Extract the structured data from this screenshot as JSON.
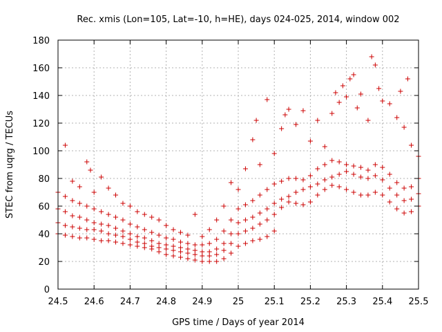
{
  "chart_data": {
    "type": "scatter",
    "title": "Rec. xmis (Lon=105, Lat=-10, h=HE), days 024-025, 2014, window 002",
    "xlabel": "GPS time / Days of year 2014",
    "ylabel": "STEC from uqrg / TECUs",
    "xlim": [
      24.5,
      25.5
    ],
    "ylim": [
      0,
      180
    ],
    "xticks": [
      "24.5",
      "24.6",
      "24.7",
      "24.8",
      "24.9",
      "25",
      "25.1",
      "25.2",
      "25.3",
      "25.4",
      "25.5"
    ],
    "yticks": [
      "0",
      "20",
      "40",
      "60",
      "80",
      "100",
      "120",
      "140",
      "160",
      "180"
    ],
    "grid": true,
    "marker": "+",
    "marker_color": "#cc0000",
    "series": [
      {
        "points": [
          [
            24.5,
            40
          ],
          [
            24.52,
            39
          ],
          [
            24.54,
            38
          ],
          [
            24.56,
            37
          ],
          [
            24.58,
            37
          ],
          [
            24.6,
            36
          ],
          [
            24.62,
            35
          ],
          [
            24.64,
            35
          ],
          [
            24.66,
            34
          ],
          [
            24.68,
            33
          ],
          [
            24.7,
            32
          ],
          [
            24.72,
            31
          ],
          [
            24.74,
            30
          ],
          [
            24.76,
            29
          ],
          [
            24.78,
            27
          ],
          [
            24.8,
            25
          ],
          [
            24.82,
            24
          ],
          [
            24.84,
            23
          ],
          [
            24.86,
            22
          ],
          [
            24.88,
            21
          ],
          [
            24.9,
            20
          ],
          [
            24.92,
            20
          ],
          [
            24.94,
            20
          ],
          [
            24.96,
            22
          ],
          [
            24.98,
            26
          ],
          [
            25.0,
            31
          ],
          [
            25.02,
            33
          ],
          [
            25.04,
            35
          ],
          [
            25.06,
            36
          ],
          [
            25.08,
            38
          ],
          [
            25.1,
            42
          ]
        ]
      },
      {
        "points": [
          [
            24.5,
            48
          ],
          [
            24.52,
            46
          ],
          [
            24.54,
            45
          ],
          [
            24.56,
            44
          ],
          [
            24.58,
            43
          ],
          [
            24.6,
            43
          ],
          [
            24.62,
            42
          ],
          [
            24.64,
            40
          ],
          [
            24.66,
            39
          ],
          [
            24.68,
            38
          ],
          [
            24.7,
            36
          ],
          [
            24.72,
            34
          ],
          [
            24.74,
            33
          ],
          [
            24.76,
            31
          ],
          [
            24.78,
            30
          ],
          [
            24.8,
            29
          ],
          [
            24.82,
            28
          ],
          [
            24.84,
            27
          ],
          [
            24.86,
            26
          ],
          [
            24.88,
            25
          ],
          [
            24.9,
            24
          ],
          [
            24.92,
            24
          ],
          [
            24.94,
            25
          ],
          [
            24.96,
            28
          ],
          [
            24.98,
            33
          ],
          [
            25.0,
            40
          ],
          [
            25.02,
            42
          ],
          [
            25.04,
            44
          ],
          [
            25.06,
            47
          ],
          [
            25.08,
            50
          ],
          [
            25.1,
            54
          ],
          [
            25.12,
            59
          ],
          [
            25.14,
            63
          ],
          [
            25.16,
            62
          ],
          [
            25.18,
            61
          ],
          [
            25.2,
            63
          ],
          [
            25.22,
            68
          ],
          [
            25.24,
            72
          ],
          [
            25.26,
            75
          ],
          [
            25.28,
            74
          ],
          [
            25.3,
            72
          ],
          [
            25.32,
            70
          ],
          [
            25.34,
            68
          ],
          [
            25.36,
            68
          ],
          [
            25.38,
            70
          ],
          [
            25.4,
            68
          ],
          [
            25.42,
            63
          ],
          [
            25.44,
            58
          ],
          [
            25.46,
            55
          ],
          [
            25.48,
            56
          ],
          [
            25.5,
            60
          ]
        ]
      },
      {
        "points": [
          [
            24.5,
            58
          ],
          [
            24.52,
            56
          ],
          [
            24.54,
            53
          ],
          [
            24.56,
            52
          ],
          [
            24.58,
            50
          ],
          [
            24.6,
            48
          ],
          [
            24.62,
            47
          ],
          [
            24.64,
            46
          ],
          [
            24.66,
            44
          ],
          [
            24.68,
            42
          ],
          [
            24.7,
            40
          ],
          [
            24.72,
            38
          ],
          [
            24.74,
            37
          ],
          [
            24.76,
            35
          ],
          [
            24.78,
            33
          ],
          [
            24.8,
            32
          ],
          [
            24.82,
            31
          ],
          [
            24.84,
            30
          ],
          [
            24.86,
            29
          ],
          [
            24.88,
            28
          ],
          [
            24.9,
            27
          ],
          [
            24.92,
            27
          ],
          [
            24.94,
            29
          ],
          [
            24.96,
            33
          ],
          [
            24.98,
            40
          ],
          [
            25.0,
            48
          ],
          [
            25.02,
            50
          ],
          [
            25.04,
            52
          ],
          [
            25.06,
            55
          ],
          [
            25.08,
            58
          ],
          [
            25.1,
            62
          ],
          [
            25.12,
            65
          ],
          [
            25.14,
            67
          ],
          [
            25.16,
            70
          ],
          [
            25.18,
            72
          ],
          [
            25.2,
            74
          ],
          [
            25.22,
            76
          ],
          [
            25.24,
            79
          ],
          [
            25.26,
            81
          ],
          [
            25.28,
            83
          ],
          [
            25.3,
            85
          ],
          [
            25.32,
            83
          ],
          [
            25.34,
            81
          ],
          [
            25.36,
            80
          ],
          [
            25.38,
            82
          ],
          [
            25.4,
            79
          ],
          [
            25.42,
            73
          ],
          [
            25.44,
            68
          ],
          [
            25.46,
            64
          ],
          [
            25.48,
            65
          ],
          [
            25.5,
            69
          ]
        ]
      },
      {
        "points": [
          [
            24.5,
            70
          ],
          [
            24.52,
            67
          ],
          [
            24.54,
            64
          ],
          [
            24.56,
            62
          ],
          [
            24.58,
            60
          ],
          [
            24.6,
            58
          ],
          [
            24.62,
            56
          ],
          [
            24.64,
            54
          ],
          [
            24.66,
            52
          ],
          [
            24.68,
            50
          ],
          [
            24.7,
            47
          ],
          [
            24.72,
            45
          ],
          [
            24.74,
            43
          ],
          [
            24.76,
            41
          ],
          [
            24.78,
            39
          ],
          [
            24.8,
            37
          ],
          [
            24.82,
            36
          ],
          [
            24.84,
            34
          ],
          [
            24.86,
            33
          ],
          [
            24.88,
            32
          ],
          [
            24.9,
            32
          ],
          [
            24.92,
            33
          ],
          [
            24.94,
            36
          ],
          [
            24.96,
            42
          ],
          [
            24.98,
            50
          ],
          [
            25.0,
            58
          ],
          [
            25.02,
            61
          ],
          [
            25.04,
            64
          ],
          [
            25.06,
            68
          ],
          [
            25.08,
            72
          ],
          [
            25.1,
            76
          ],
          [
            25.12,
            78
          ],
          [
            25.14,
            80
          ],
          [
            25.16,
            80
          ],
          [
            25.18,
            79
          ],
          [
            25.2,
            82
          ],
          [
            25.22,
            87
          ],
          [
            25.24,
            90
          ],
          [
            25.26,
            93
          ],
          [
            25.28,
            92
          ],
          [
            25.3,
            90
          ],
          [
            25.32,
            89
          ],
          [
            25.34,
            88
          ],
          [
            25.36,
            86
          ],
          [
            25.38,
            90
          ],
          [
            25.4,
            88
          ],
          [
            25.42,
            83
          ],
          [
            25.44,
            77
          ],
          [
            25.46,
            73
          ],
          [
            25.48,
            74
          ],
          [
            25.5,
            80
          ]
        ]
      },
      {
        "points": [
          [
            24.52,
            104
          ],
          [
            24.54,
            78
          ],
          [
            24.56,
            74
          ],
          [
            24.58,
            92
          ],
          [
            24.59,
            86
          ],
          [
            24.6,
            70
          ],
          [
            24.62,
            81
          ],
          [
            24.64,
            73
          ],
          [
            24.66,
            68
          ],
          [
            24.68,
            62
          ],
          [
            24.7,
            60
          ],
          [
            24.72,
            56
          ],
          [
            24.74,
            54
          ],
          [
            24.76,
            52
          ],
          [
            24.78,
            50
          ],
          [
            24.8,
            46
          ],
          [
            24.82,
            43
          ],
          [
            24.84,
            41
          ],
          [
            24.86,
            39
          ],
          [
            24.88,
            54
          ],
          [
            24.9,
            38
          ],
          [
            24.92,
            43
          ],
          [
            24.94,
            50
          ],
          [
            24.96,
            60
          ],
          [
            24.98,
            77
          ],
          [
            25.0,
            72
          ],
          [
            25.02,
            87
          ],
          [
            25.04,
            108
          ],
          [
            25.05,
            122
          ],
          [
            25.06,
            90
          ],
          [
            25.08,
            137
          ],
          [
            25.1,
            98
          ],
          [
            25.12,
            116
          ],
          [
            25.13,
            126
          ],
          [
            25.14,
            130
          ],
          [
            25.16,
            119
          ],
          [
            25.18,
            129
          ],
          [
            25.2,
            107
          ],
          [
            25.22,
            122
          ],
          [
            25.24,
            103
          ],
          [
            25.26,
            127
          ],
          [
            25.27,
            142
          ],
          [
            25.28,
            135
          ],
          [
            25.29,
            147
          ],
          [
            25.3,
            139
          ],
          [
            25.31,
            152
          ],
          [
            25.32,
            155
          ],
          [
            25.33,
            131
          ],
          [
            25.34,
            141
          ],
          [
            25.36,
            122
          ],
          [
            25.37,
            168
          ],
          [
            25.38,
            162
          ],
          [
            25.39,
            145
          ],
          [
            25.4,
            136
          ],
          [
            25.42,
            134
          ],
          [
            25.44,
            124
          ],
          [
            25.45,
            143
          ],
          [
            25.46,
            117
          ],
          [
            25.47,
            152
          ],
          [
            25.48,
            104
          ],
          [
            25.5,
            96
          ]
        ]
      }
    ]
  }
}
